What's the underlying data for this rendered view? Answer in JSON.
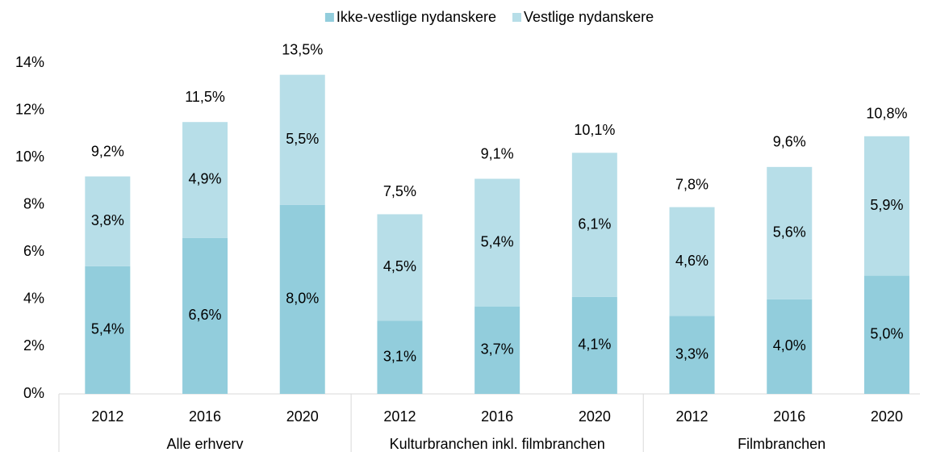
{
  "chart_data": {
    "type": "stacked-bar",
    "groups": [
      {
        "name": "Alle erhverv",
        "categories": [
          "2012",
          "2016",
          "2020"
        ]
      },
      {
        "name": "Kulturbranchen inkl. filmbranchen",
        "categories": [
          "2012",
          "2016",
          "2020"
        ]
      },
      {
        "name": "Filmbranchen",
        "categories": [
          "2012",
          "2016",
          "2020"
        ]
      }
    ],
    "series": [
      {
        "name": "Ikke-vestlige nydanskere",
        "color": "#92cddc",
        "values": [
          5.4,
          6.6,
          8.0,
          3.1,
          3.7,
          4.1,
          3.3,
          4.0,
          5.0
        ],
        "value_labels": [
          "5,4%",
          "6,6%",
          "8,0%",
          "3,1%",
          "3,7%",
          "4,1%",
          "3,3%",
          "4,0%",
          "5,0%"
        ]
      },
      {
        "name": "Vestlige nydanskere",
        "color": "#b7dee8",
        "values": [
          3.8,
          4.9,
          5.5,
          4.5,
          5.4,
          6.1,
          4.6,
          5.6,
          5.9
        ],
        "value_labels": [
          "3,8%",
          "4,9%",
          "5,5%",
          "4,5%",
          "5,4%",
          "6,1%",
          "4,6%",
          "5,6%",
          "5,9%"
        ]
      }
    ],
    "totals": [
      9.2,
      11.5,
      13.5,
      7.5,
      9.1,
      10.1,
      7.8,
      9.6,
      10.8
    ],
    "total_labels": [
      "9,2%",
      "11,5%",
      "13,5%",
      "7,5%",
      "9,1%",
      "10,1%",
      "7,8%",
      "9,6%",
      "10,8%"
    ],
    "ylim": [
      0,
      14
    ],
    "yticks": [
      {
        "value": 0,
        "label": "0%"
      },
      {
        "value": 2,
        "label": "2%"
      },
      {
        "value": 4,
        "label": "4%"
      },
      {
        "value": 6,
        "label": "6%"
      },
      {
        "value": 8,
        "label": "8%"
      },
      {
        "value": 10,
        "label": "10%"
      },
      {
        "value": 12,
        "label": "12%"
      },
      {
        "value": 14,
        "label": "14%"
      }
    ],
    "legend": "top"
  }
}
